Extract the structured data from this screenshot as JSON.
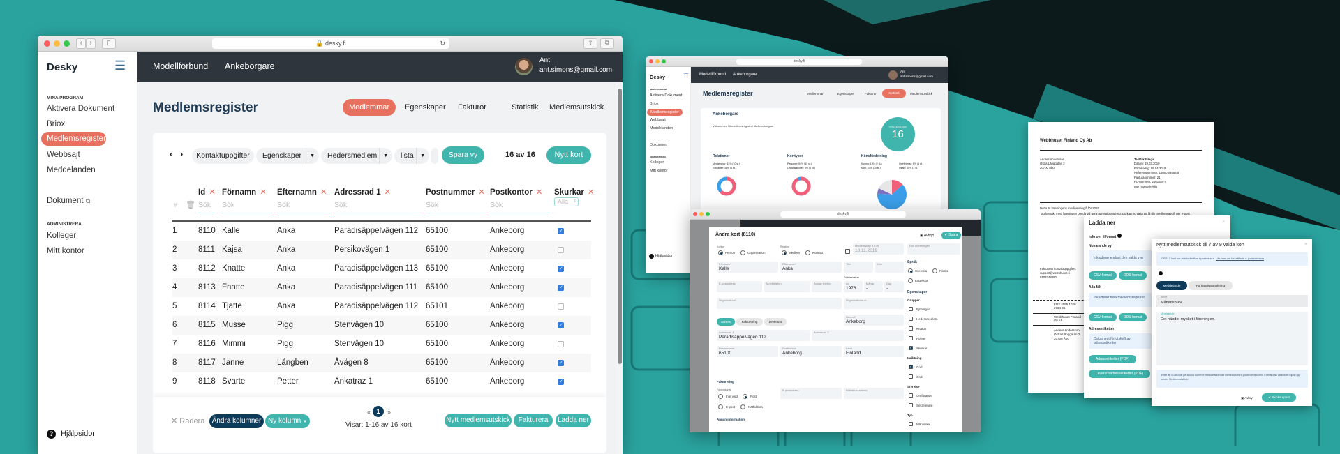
{
  "colors": {
    "teal": "#3fb5ad",
    "coral": "#e8705f",
    "navy": "#0e3a5a",
    "header_dark": "#2f353d",
    "background": "#2aa39f"
  },
  "main_window": {
    "url": "desky.fi",
    "sidebar": {
      "logo": "Desky",
      "section_programs": "MINA PROGRAM",
      "programs": [
        "Aktivera Dokument",
        "Briox",
        "Medlemsregister",
        "Webbsajt",
        "Meddelanden"
      ],
      "active": "Medlemsregister",
      "documents": "Dokument",
      "section_admin": "ADMINISTRERA",
      "admin": [
        "Kolleger",
        "Mitt kontor"
      ],
      "help": "Hjälpsidor"
    },
    "header": {
      "org": "Modellförbund",
      "group": "Ankeborgare",
      "user_name": "Ant",
      "user_email": "ant.simons@gmail.com"
    },
    "page": {
      "title": "Medlemsregister",
      "tabs": [
        "Medlemmar",
        "Egenskaper",
        "Fakturor",
        "Statistik",
        "Medlemsutskick"
      ],
      "active_tab": "Medlemmar"
    },
    "toolbar": {
      "views": [
        "Kontaktuppgifter",
        "Egenskaper",
        "Hedersmedlem",
        "lista"
      ],
      "save_view": "Spara vy",
      "count": "16 av 16",
      "new_card": "Nytt kort"
    },
    "table": {
      "hash": "#",
      "columns": [
        "Id",
        "Förnamn",
        "Efternamn",
        "Adressrad 1",
        "Postnummer",
        "Postkontor",
        "Skurkar"
      ],
      "search_placeholder": "Sök",
      "select_value": "Alla",
      "rows": [
        [
          "1",
          "8110",
          "Kalle",
          "Anka",
          "Paradisäppelvägen 112",
          "65100",
          "Ankeborg",
          true
        ],
        [
          "2",
          "8111",
          "Kajsa",
          "Anka",
          "Persikovägen 1",
          "65100",
          "Ankeborg",
          false
        ],
        [
          "3",
          "8112",
          "Knatte",
          "Anka",
          "Paradisäppelvägen 113",
          "65100",
          "Ankeborg",
          true
        ],
        [
          "4",
          "8113",
          "Fnatte",
          "Anka",
          "Paradisäppelvägen 111",
          "65100",
          "Ankeborg",
          true
        ],
        [
          "5",
          "8114",
          "Tjatte",
          "Anka",
          "Paradisäppelvägen 112",
          "65101",
          "Ankeborg",
          false
        ],
        [
          "6",
          "8115",
          "Musse",
          "Pigg",
          "Stenvägen 10",
          "65100",
          "Ankeborg",
          true
        ],
        [
          "7",
          "8116",
          "Mimmi",
          "Pigg",
          "Stenvägen 10",
          "65100",
          "Ankeborg",
          false
        ],
        [
          "8",
          "8117",
          "Janne",
          "Långben",
          "Åvägen 8",
          "65100",
          "Ankeborg",
          true
        ],
        [
          "9",
          "8118",
          "Svarte",
          "Petter",
          "Ankatraz 1",
          "65100",
          "Ankeborg",
          true
        ]
      ]
    },
    "footer": {
      "delete": "Radera",
      "change_columns": "Ändra kolumner",
      "new_column": "Ny kolumn",
      "page": "1",
      "showing": "Visar: 1-16 av 16 kort",
      "new_mailing": "Nytt medlemsutskick",
      "invoice": "Fakturera",
      "download": "Ladda ner"
    }
  },
  "stats_window": {
    "url": "desky.fi",
    "logo": "Desky",
    "sidebar": [
      "MINA PROGRAM",
      "Aktivera Dokument",
      "Briox",
      "Medlemsregister",
      "Webbsajt",
      "Meddelanden",
      "Dokument",
      "ADMINISTRERA",
      "Kolleger",
      "Mitt kontor",
      "Hjälpsidor"
    ],
    "header": {
      "org": "Modellförbund",
      "group": "Ankeborgare",
      "user_name": "Ant",
      "user_email": "ant.simons@gmail.com"
    },
    "title": "Medlemsregister",
    "tabs": [
      "Medlemmar",
      "Egenskaper",
      "Fakturor",
      "Statistik",
      "Medlemsutskick"
    ],
    "active_tab": "Statistik",
    "group": "Ankeborgare",
    "welcome": "Välkommen till medlemsregistret för Ankeborgare.",
    "total_label": "TOTALT ANTAL KORT",
    "total": "16",
    "relations": {
      "title": "Relationer",
      "lines": [
        "Medlemmar: 63% (10 st.)",
        "Kontakter: 38% (6 st.)"
      ],
      "members_pct": 63
    },
    "card_types": {
      "title": "Korttyper",
      "lines": [
        "Personer: 94% (15 st.)",
        "Organisationer: 6% (1 st.)"
      ],
      "persons_pct": 94
    },
    "gender": {
      "title": "Könsfördelning",
      "lines": [
        "Kvinna: 13% (2 st.)",
        "Man: 63% (10 st.)",
        "Odefinierad: 6% (1 st.)",
        "Okänt: 19% (3 st.)"
      ],
      "shares": [
        13,
        63,
        6,
        19
      ]
    }
  },
  "edit_window": {
    "url": "desky.fi",
    "title": "Ändra kort (8110)",
    "cancel": "Avbryt",
    "save": "Spara",
    "card_type_label": "Korttyp",
    "card_types": [
      "Person",
      "Organisation"
    ],
    "relation_label": "Relation",
    "relations": [
      "Medlem",
      "Kontakt"
    ],
    "member_since_label": "Medlemskap fr.o.m.",
    "member_since": "10.11.2019",
    "role_label": "Roll i föreningen",
    "fields": {
      "first_name": {
        "label": "Förnamn*",
        "value": "Kalle"
      },
      "last_name": {
        "label": "Efternamn*",
        "value": "Anka"
      },
      "title": {
        "label": "Titel",
        "value": ""
      },
      "gender": {
        "label": "Kön",
        "value": ""
      },
      "email": {
        "label": "E-postadress",
        "value": ""
      },
      "mobile": {
        "label": "Mobiltelefon",
        "value": ""
      },
      "phone": {
        "label": "Annan telefon",
        "value": ""
      },
      "birth_label": "Födelsedatum",
      "year": {
        "label": "År",
        "value": "1976"
      },
      "month": {
        "label": "Månad",
        "value": "-"
      },
      "day": {
        "label": "Dag",
        "value": "-"
      },
      "organisation": {
        "label": "Organisation*",
        "value": ""
      },
      "org_nr": {
        "label": "Organisations nr.",
        "value": ""
      },
      "home": {
        "label": "Hemort*",
        "value": "Ankeborg"
      },
      "address1": {
        "label": "Adressrad 1",
        "value": "Paradisäppelvägen 112"
      },
      "address2": {
        "label": "Adressrad 2",
        "value": ""
      },
      "zip": {
        "label": "Postnummer",
        "value": "65100"
      },
      "city": {
        "label": "Postkontor",
        "value": "Ankeborg"
      },
      "country": {
        "label": "Land",
        "value": "Finland"
      },
      "bill_email": {
        "label": "E-postadress",
        "value": ""
      },
      "e_invoice": {
        "label": "Nätfakturaadress",
        "value": ""
      }
    },
    "address_tabs": [
      "Adress",
      "Fakturering",
      "Leverans"
    ],
    "billing_title": "Fakturering",
    "billing_channel_label": "Fakturakanal",
    "billing_channels": [
      "Inte vald",
      "Post",
      "E-post",
      "Nätfaktura"
    ],
    "other_info": "Annan information",
    "language_title": "Språk",
    "languages": [
      "Svenska",
      "Finska",
      "Engelska"
    ],
    "properties_title": "Egenskaper",
    "groups": [
      {
        "title": "Grupper",
        "items": [
          {
            "label": "Björnligan",
            "checked": false
          },
          {
            "label": "Hedersmedlem",
            "checked": false
          },
          {
            "label": "Knattar",
            "checked": false
          },
          {
            "label": "Poliser",
            "checked": false
          },
          {
            "label": "Skurkar",
            "checked": true
          }
        ]
      },
      {
        "title": "Inriktning",
        "items": [
          {
            "label": "God",
            "checked": true
          },
          {
            "label": "Ond",
            "checked": false
          }
        ]
      },
      {
        "title": "Styrelse",
        "items": [
          {
            "label": "Ordförande",
            "checked": false
          },
          {
            "label": "Sekreterare",
            "checked": false
          }
        ]
      },
      {
        "title": "Typ",
        "items": [
          {
            "label": "Människa",
            "checked": false
          }
        ]
      }
    ]
  },
  "invoice": {
    "company": "Webbhuset Finland Oy Ab",
    "recipient": [
      "Anders Andersson",
      "Östra Länggatan 2",
      "20700 Åbo"
    ],
    "heading": "Testfak bilaga",
    "details": [
      "Datum: 19.03.2019",
      "Förfallodag: 09.04.2019",
      "Referensnummer: 14000 04655 5",
      "Fakturanummer: 21",
      "FO-nummer: 2001654-4",
      "Inte momsskyldig"
    ],
    "text1": "Detta är föreningens medlemsavgift för 2019.",
    "text2": "Tag kontakt med föreningen om du vill göra adressförändring. Du kan nu välja att få din medlemsavgift per e-post",
    "contact": [
      "Fakturans kontaktuppgifter:",
      "support@webbhuset.fi",
      "0103248890"
    ],
    "iban": "FI32 4055 1020 2764 36",
    "payee": "Webbhuset Finland Oy Ab",
    "payer": [
      "Anders Andersson",
      "Östra Länggatan 2",
      "20700 Åbo"
    ]
  },
  "download_dialog": {
    "title": "Ladda ner",
    "info": "Info om filformat",
    "current_view": "Nuvarande vy",
    "current_view_desc": "Inkluderar endast den valda vyn",
    "all_fields": "Alla fält",
    "all_fields_desc": "Inkluderar hela medlemsregistret",
    "labels": "Adressetiketter",
    "labels_desc": "Dokument för utskrift av adressetiketter",
    "csv": "CSV-format",
    "ods": "ODS-format",
    "labels_pdf": "Adressetiketter (PDF)",
    "delivery_labels_pdf": "Leveransadressetiketter (PDF)"
  },
  "mailing_dialog": {
    "title": "Nytt medlemsutskick till 7 av 9 valda kort",
    "notice": "OBS! 2 kort har inte bekräftad epostadress.",
    "notice_link": "Läs mer om bekräftade e-postadresser",
    "tabs": [
      "Meddelande",
      "Förhandsgranskning"
    ],
    "subject_label": "Ämne",
    "subject": "Månadsbrev",
    "message_label": "Meddelande",
    "message": "Det händer mycket i föreningen.",
    "info": "Efter att du klickat på skicka kommer meddelandet att förmedlas till e-postleverantören. Efteråt kan utskicket följas upp under Medlemsutskick.",
    "cancel": "Avbryt",
    "send": "Skicka epost"
  }
}
